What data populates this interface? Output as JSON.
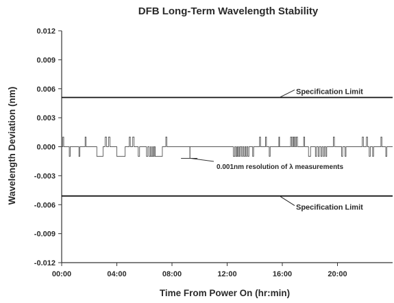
{
  "chart_data": {
    "type": "line",
    "title": "DFB Long-Term Wavelength Stability",
    "xlabel": "Time From Power On  (hr:min)",
    "ylabel": "Wavelength Deviation (nm)",
    "xlim": [
      0,
      24
    ],
    "ylim": [
      -0.012,
      0.012
    ],
    "xticks": [
      {
        "value": 0,
        "label": "00:00"
      },
      {
        "value": 4,
        "label": "04:00"
      },
      {
        "value": 8,
        "label": "08:00"
      },
      {
        "value": 12,
        "label": "12:00"
      },
      {
        "value": 16,
        "label": "16:00"
      },
      {
        "value": 20,
        "label": "20:00"
      }
    ],
    "yticks": [
      {
        "value": 0.012,
        "label": "0.012"
      },
      {
        "value": 0.009,
        "label": "0.009"
      },
      {
        "value": 0.006,
        "label": "0.006"
      },
      {
        "value": 0.003,
        "label": "0.003"
      },
      {
        "value": 0.0,
        "label": "0.000"
      },
      {
        "value": -0.003,
        "label": "-0.003"
      },
      {
        "value": -0.006,
        "label": "-0.006"
      },
      {
        "value": -0.009,
        "label": "-0.009"
      },
      {
        "value": -0.012,
        "label": "-0.012"
      }
    ],
    "grid": false,
    "reference_lines": [
      {
        "label": "Specification Limit",
        "y": 0.0051,
        "label_position": "above"
      },
      {
        "label": "Specification Limit",
        "y": -0.0051,
        "label_position": "below"
      }
    ],
    "annotation": {
      "text": "0.001nm  resolution of λ measurements",
      "x": 9.25,
      "y": -0.0012
    },
    "series": [
      {
        "values": [
          [
            0.0,
            0
          ],
          [
            0.08,
            0.001
          ],
          [
            0.15,
            0
          ],
          [
            0.55,
            -0.001
          ],
          [
            0.62,
            0
          ],
          [
            1.25,
            -0.001
          ],
          [
            1.32,
            0
          ],
          [
            1.7,
            0.001
          ],
          [
            1.77,
            0
          ],
          [
            2.55,
            -0.001
          ],
          [
            3.0,
            0
          ],
          [
            3.15,
            0.001
          ],
          [
            3.25,
            0
          ],
          [
            3.4,
            0.001
          ],
          [
            3.5,
            0
          ],
          [
            4.0,
            -0.001
          ],
          [
            4.6,
            0
          ],
          [
            4.9,
            0.001
          ],
          [
            4.98,
            0
          ],
          [
            5.15,
            0.001
          ],
          [
            5.25,
            0
          ],
          [
            5.55,
            -0.001
          ],
          [
            5.65,
            0
          ],
          [
            6.15,
            -0.001
          ],
          [
            6.25,
            0
          ],
          [
            6.35,
            -0.001
          ],
          [
            6.45,
            0
          ],
          [
            6.5,
            -0.001
          ],
          [
            6.6,
            0
          ],
          [
            6.65,
            -0.001
          ],
          [
            6.72,
            0
          ],
          [
            6.78,
            -0.001
          ],
          [
            7.3,
            0
          ],
          [
            7.55,
            0.001
          ],
          [
            7.63,
            0
          ],
          [
            12.45,
            -0.001
          ],
          [
            12.55,
            0
          ],
          [
            12.62,
            -0.001
          ],
          [
            12.7,
            0
          ],
          [
            12.75,
            -0.001
          ],
          [
            12.82,
            0
          ],
          [
            12.88,
            -0.001
          ],
          [
            12.95,
            0
          ],
          [
            13.05,
            -0.001
          ],
          [
            13.12,
            0
          ],
          [
            13.2,
            -0.001
          ],
          [
            13.28,
            0
          ],
          [
            13.35,
            -0.001
          ],
          [
            13.42,
            0
          ],
          [
            13.5,
            -0.001
          ],
          [
            13.58,
            0
          ],
          [
            13.85,
            -0.001
          ],
          [
            13.92,
            0
          ],
          [
            14.35,
            0.001
          ],
          [
            14.42,
            0
          ],
          [
            14.78,
            0.001
          ],
          [
            14.85,
            0
          ],
          [
            15.05,
            -0.001
          ],
          [
            15.12,
            0
          ],
          [
            15.75,
            0.001
          ],
          [
            15.8,
            0
          ],
          [
            16.6,
            0.001
          ],
          [
            16.68,
            0
          ],
          [
            16.75,
            0.001
          ],
          [
            16.82,
            0
          ],
          [
            16.88,
            0.001
          ],
          [
            16.95,
            0
          ],
          [
            17.02,
            0.001
          ],
          [
            17.1,
            0
          ],
          [
            17.55,
            0.001
          ],
          [
            17.62,
            0
          ],
          [
            17.9,
            -0.001
          ],
          [
            18.05,
            0
          ],
          [
            18.4,
            -0.001
          ],
          [
            18.48,
            0
          ],
          [
            18.6,
            -0.001
          ],
          [
            18.68,
            0
          ],
          [
            18.8,
            -0.001
          ],
          [
            18.88,
            0
          ],
          [
            18.98,
            -0.001
          ],
          [
            19.05,
            0
          ],
          [
            19.15,
            -0.001
          ],
          [
            19.22,
            0
          ],
          [
            19.7,
            0.001
          ],
          [
            19.78,
            0
          ],
          [
            20.3,
            -0.001
          ],
          [
            20.38,
            0
          ],
          [
            20.55,
            -0.001
          ],
          [
            20.62,
            0
          ],
          [
            21.8,
            0.001
          ],
          [
            21.88,
            0
          ],
          [
            22.1,
            0.001
          ],
          [
            22.18,
            0
          ],
          [
            22.3,
            -0.001
          ],
          [
            22.38,
            0
          ],
          [
            22.55,
            -0.001
          ],
          [
            22.62,
            0
          ],
          [
            23.15,
            0.001
          ],
          [
            23.22,
            0
          ],
          [
            23.5,
            -0.001
          ],
          [
            23.58,
            0
          ],
          [
            24.0,
            0
          ]
        ]
      }
    ]
  }
}
